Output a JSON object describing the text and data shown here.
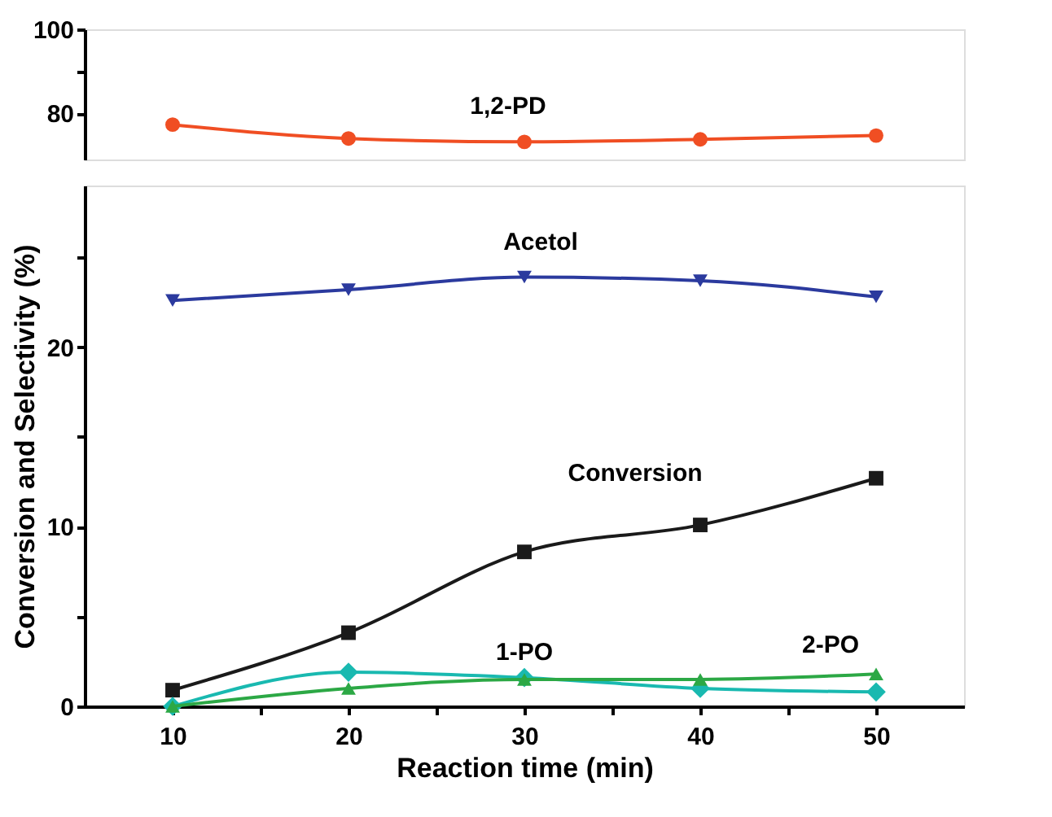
{
  "chart_data": [
    {
      "type": "line",
      "x": [
        10,
        20,
        30,
        40,
        50
      ],
      "xlim": [
        5,
        55
      ],
      "ylim": [
        69,
        100
      ],
      "yticks": [
        80,
        {
          "value": 90,
          "label": null
        },
        100
      ],
      "tick_labels": "y",
      "grid": false,
      "line_style": "solid",
      "series": [
        {
          "name": "1,2-PD",
          "color": "#f04e23",
          "marker": "circle",
          "values": [
            77.3,
            74.0,
            73.2,
            73.8,
            74.7
          ]
        }
      ]
    },
    {
      "type": "line",
      "x": [
        10,
        20,
        30,
        40,
        50
      ],
      "xlim": [
        5,
        55
      ],
      "ylim": [
        0,
        29
      ],
      "xticks": [
        10,
        {
          "value": 15,
          "label": null
        },
        20,
        {
          "value": 25,
          "label": null
        },
        30,
        {
          "value": 35,
          "label": null
        },
        40,
        {
          "value": 45,
          "label": null
        },
        50
      ],
      "yticks": [
        0,
        {
          "value": 5,
          "label": null
        },
        10,
        {
          "value": 15,
          "label": null
        },
        20,
        {
          "value": 25,
          "label": null
        }
      ],
      "xlabel": "Reaction time (min)",
      "ylabel": "Conversion and Selectivity (%)",
      "grid": false,
      "line_style": "solid",
      "series": [
        {
          "name": "Acetol",
          "color": "#2b3a9e",
          "marker": "triangle-down",
          "values": [
            22.6,
            23.2,
            23.9,
            23.7,
            22.8
          ]
        },
        {
          "name": "Conversion",
          "color": "#1a1a1a",
          "marker": "square",
          "values": [
            0.9,
            4.1,
            8.6,
            10.1,
            12.7
          ]
        },
        {
          "name": "1-PO",
          "color": "#19b9b0",
          "marker": "diamond",
          "values": [
            0.0,
            1.9,
            1.6,
            1.0,
            0.8
          ]
        },
        {
          "name": "2-PO",
          "color": "#2ca845",
          "marker": "triangle",
          "values": [
            0.0,
            1.0,
            1.5,
            1.5,
            1.8
          ]
        }
      ]
    }
  ]
}
